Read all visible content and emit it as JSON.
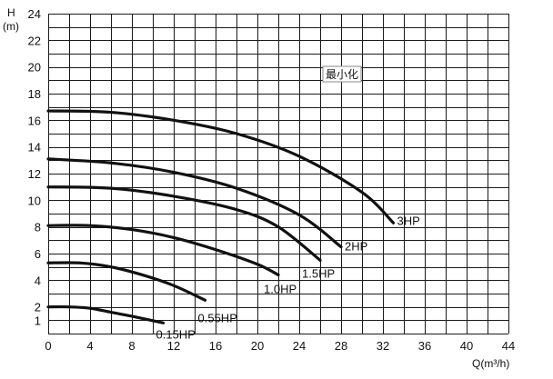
{
  "chart_data": {
    "type": "line",
    "title": "",
    "xlabel": "Q(m³/h)",
    "ylabel": "H\n(m)",
    "xlim": [
      0,
      44
    ],
    "ylim": [
      0,
      24
    ],
    "x_ticks": [
      0,
      4,
      8,
      12,
      16,
      20,
      24,
      28,
      32,
      36,
      40,
      44
    ],
    "y_ticks": [
      1,
      2,
      4,
      6,
      8,
      10,
      12,
      14,
      16,
      18,
      20,
      22,
      24
    ],
    "grid": true,
    "series": [
      {
        "name": "3HP",
        "x": [
          0,
          6,
          12,
          18,
          24,
          30,
          33.0
        ],
        "y": [
          16.7,
          16.6,
          16.0,
          15.0,
          13.3,
          10.6,
          8.3
        ]
      },
      {
        "name": "2HP",
        "x": [
          0,
          6,
          12,
          18,
          24,
          28.0
        ],
        "y": [
          13.1,
          12.8,
          12.1,
          10.9,
          8.9,
          6.5
        ]
      },
      {
        "name": "1.5HP",
        "x": [
          0,
          6,
          12,
          18,
          22,
          26.0
        ],
        "y": [
          11.0,
          10.9,
          10.3,
          9.3,
          8.0,
          5.5
        ]
      },
      {
        "name": "1.0HP",
        "x": [
          0,
          4,
          8,
          12,
          16,
          20,
          22.0
        ],
        "y": [
          8.1,
          8.1,
          7.8,
          7.2,
          6.3,
          5.2,
          4.4
        ]
      },
      {
        "name": "0.55HP",
        "x": [
          0,
          3,
          6,
          9,
          12,
          15.0
        ],
        "y": [
          5.3,
          5.3,
          5.0,
          4.4,
          3.6,
          2.5
        ]
      },
      {
        "name": "0.15HP",
        "x": [
          0,
          2,
          4,
          6,
          8,
          11.0
        ],
        "y": [
          2.0,
          2.0,
          1.9,
          1.6,
          1.3,
          0.8
        ]
      }
    ],
    "annotation": "最小化"
  }
}
